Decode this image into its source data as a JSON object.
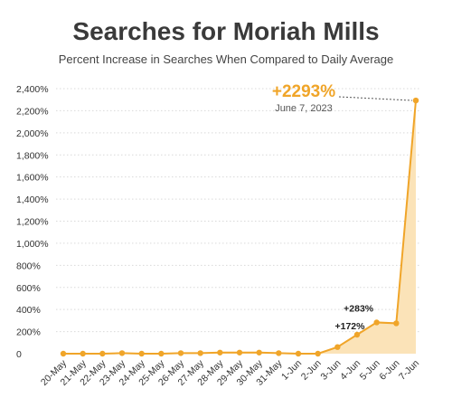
{
  "chart_data": {
    "type": "area",
    "title": "Searches for Moriah Mills",
    "subtitle": "Percent Increase in Searches When Compared to Daily Average",
    "categories": [
      "20-May",
      "21-May",
      "22-May",
      "23-May",
      "24-May",
      "25-May",
      "26-May",
      "27-May",
      "28-May",
      "29-May",
      "30-May",
      "31-May",
      "1-Jun",
      "2-Jun",
      "3-Jun",
      "4-Jun",
      "5-Jun",
      "6-Jun",
      "7-Jun"
    ],
    "series": [
      {
        "values": [
          0,
          0,
          0,
          5,
          0,
          0,
          5,
          5,
          10,
          10,
          10,
          5,
          0,
          0,
          60,
          172,
          283,
          275,
          2293
        ]
      }
    ],
    "y_ticks": [
      "0",
      "200%",
      "400%",
      "600%",
      "800%",
      "1,000%",
      "1,200%",
      "1,400%",
      "1,600%",
      "1,800%",
      "2,000%",
      "2,200%",
      "2,400%"
    ],
    "ylim": [
      0,
      2400
    ],
    "grid": true,
    "annotations": [
      {
        "label": "+172%",
        "category": "4-Jun"
      },
      {
        "label": "+283%",
        "category": "5-Jun"
      },
      {
        "label": "+2293%",
        "sublabel": "June 7, 2023",
        "category": "7-Jun"
      }
    ],
    "colors": {
      "line": "#f0a529",
      "fill": "#fbe3b8",
      "callout": "#f0a529"
    }
  }
}
